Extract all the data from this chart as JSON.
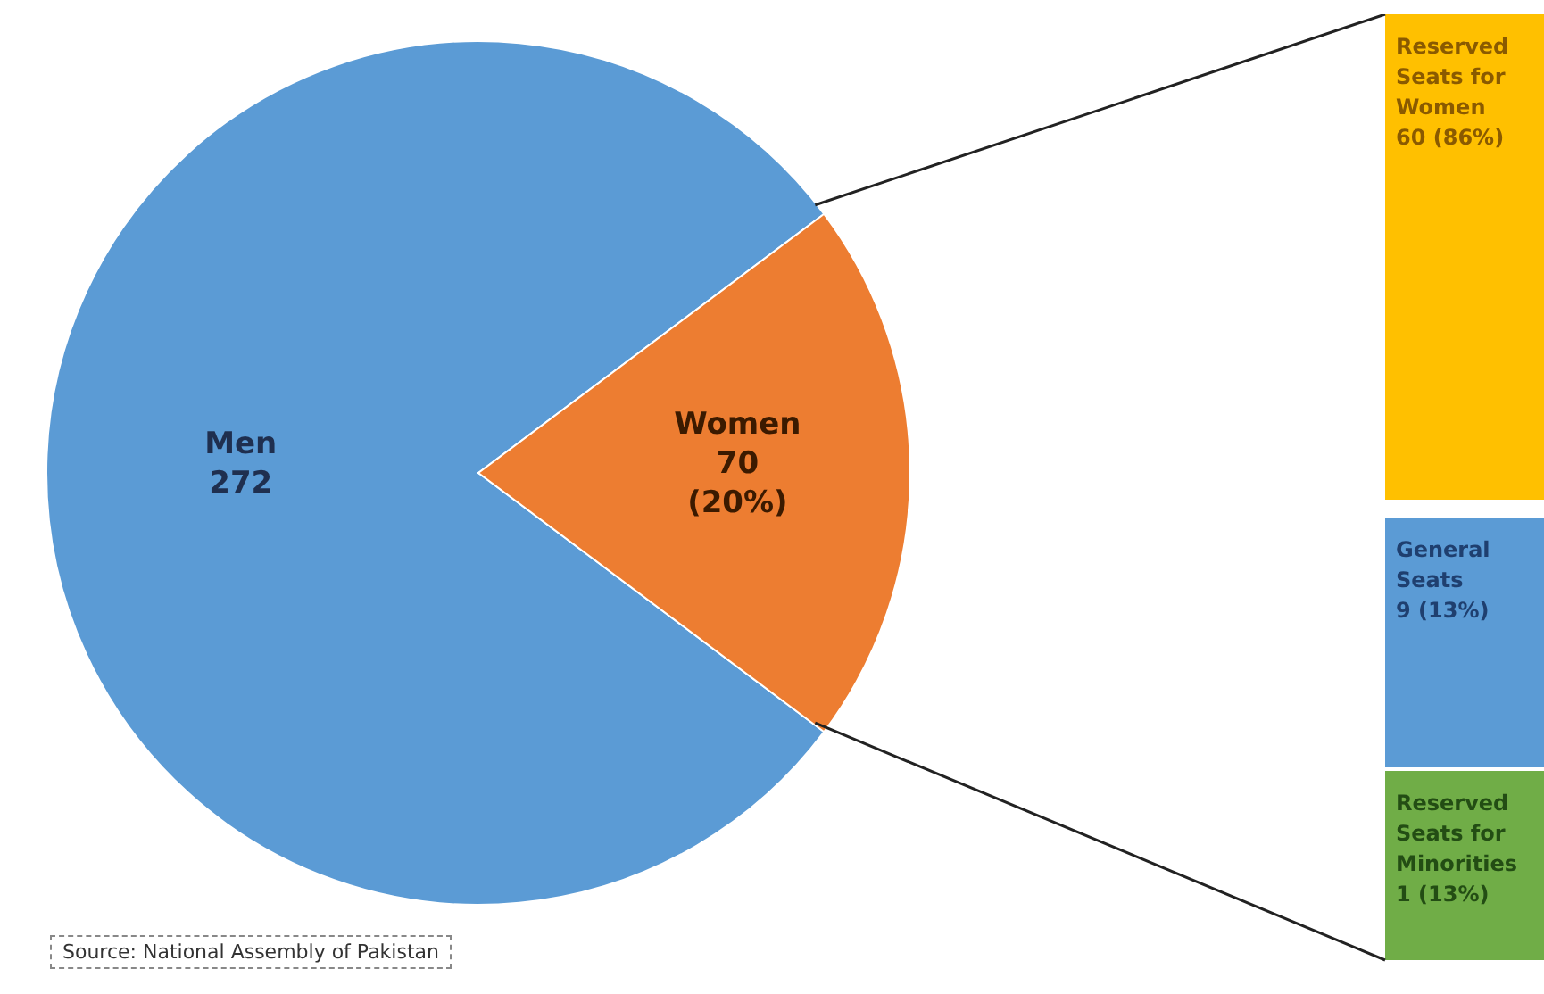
{
  "chart_data": [
    {
      "type": "pie",
      "categories": [
        "Men",
        "Women"
      ],
      "values": [
        272,
        70
      ],
      "value_labels": [
        "272",
        "70 (20%)"
      ],
      "colors": [
        "#5b9bd5",
        "#ed7d31"
      ],
      "annotations": [
        "Source: National Assembly of Pakistan"
      ]
    },
    {
      "type": "other",
      "categories": [
        "Reserved Seats for Women",
        "General Seats",
        "Reserved Seats for Minorities"
      ],
      "value_labels": [
        "60 (86%)",
        "9 (13%)",
        "1 (13%)"
      ],
      "colors": [
        "#ffc000",
        "#5b9bd5",
        "#70ad47"
      ]
    }
  ]
}
